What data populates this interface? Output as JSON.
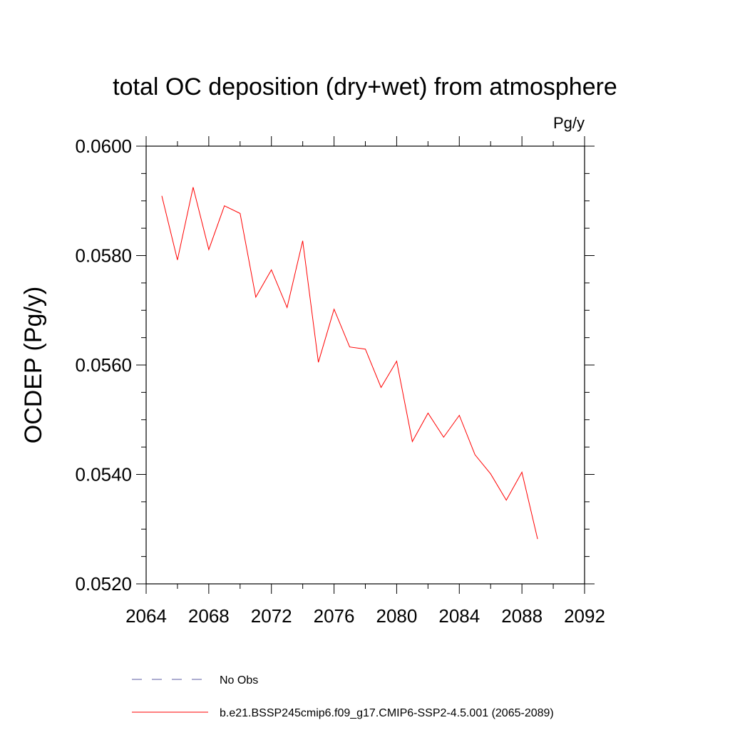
{
  "chart_data": {
    "type": "line",
    "title": "total OC deposition (dry+wet) from atmosphere",
    "units_label": "Pg/y",
    "ylabel": "OCDEP  (Pg/y)",
    "xlabel": "",
    "xlim": [
      2064,
      2092
    ],
    "ylim": [
      0.052,
      0.06
    ],
    "x_ticks": [
      2064,
      2068,
      2072,
      2076,
      2080,
      2084,
      2088,
      2092
    ],
    "x_tick_labels": [
      "2064",
      "2068",
      "2072",
      "2076",
      "2080",
      "2084",
      "2088",
      "2092"
    ],
    "y_ticks": [
      0.052,
      0.054,
      0.056,
      0.058,
      0.06
    ],
    "y_tick_labels": [
      "0.0520",
      "0.0540",
      "0.0560",
      "0.0580",
      "0.0600"
    ],
    "grid": false,
    "legend_position": "bottom",
    "series": [
      {
        "name": "b.e21.BSSP245cmip6.f09_g17.CMIP6-SSP2-4.5.001 (2065-2089)",
        "color": "#ff0000",
        "style": "solid",
        "x": [
          2065,
          2066,
          2067,
          2068,
          2069,
          2070,
          2071,
          2072,
          2073,
          2074,
          2075,
          2076,
          2077,
          2078,
          2079,
          2080,
          2081,
          2082,
          2083,
          2084,
          2085,
          2086,
          2087,
          2088,
          2089
        ],
        "values": [
          0.05909,
          0.05792,
          0.05925,
          0.05811,
          0.05891,
          0.05877,
          0.05724,
          0.05774,
          0.05705,
          0.05827,
          0.05605,
          0.05702,
          0.05633,
          0.05629,
          0.05559,
          0.05607,
          0.0546,
          0.05512,
          0.05468,
          0.05508,
          0.05436,
          0.05401,
          0.05353,
          0.05404,
          0.05282
        ]
      },
      {
        "name": "No Obs",
        "color": "#5a5aa0",
        "style": "dashed",
        "x": [],
        "values": []
      }
    ]
  }
}
